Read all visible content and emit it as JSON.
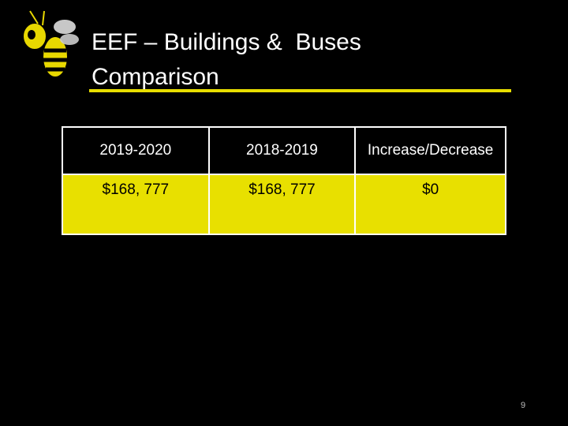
{
  "header": {
    "title": "EEF – Buildings &  Buses Comparison"
  },
  "table": {
    "header": [
      "2019-2020",
      "2018-2019",
      "Increase/Decrease"
    ],
    "rows": [
      [
        "$168, 777",
        "$168, 777",
        "$0"
      ]
    ]
  },
  "footer": {
    "page_number": "9"
  }
}
